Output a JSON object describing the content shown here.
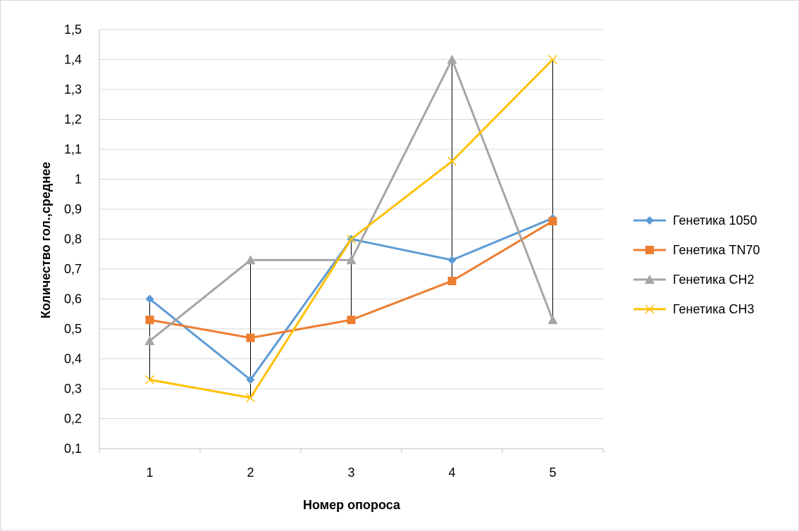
{
  "chart_data": {
    "type": "line",
    "title": "",
    "xlabel": "Номер опороса",
    "ylabel": "Количество гол.,среднее",
    "categories": [
      "1",
      "2",
      "3",
      "4",
      "5"
    ],
    "ylim": [
      0.1,
      1.5
    ],
    "yticks": [
      0.1,
      0.2,
      0.3,
      0.4,
      0.5,
      0.6,
      0.7,
      0.8,
      0.9,
      1.0,
      1.1,
      1.2,
      1.3,
      1.4,
      1.5
    ],
    "ytick_labels": [
      "0,1",
      "0,2",
      "0,3",
      "0,4",
      "0,5",
      "0,6",
      "0,7",
      "0,8",
      "0,9",
      "1",
      "1,1",
      "1,2",
      "1,3",
      "1,4",
      "1,5"
    ],
    "grid": true,
    "legend_position": "right",
    "high_low_lines": true,
    "series": [
      {
        "name": "Генетика 1050",
        "values": [
          0.6,
          0.33,
          0.8,
          0.73,
          0.87
        ],
        "color": "#5b9bd5",
        "marker": "diamond"
      },
      {
        "name": "Генетика TN70",
        "values": [
          0.53,
          0.47,
          0.53,
          0.66,
          0.86
        ],
        "color": "#ed7d31",
        "marker": "square"
      },
      {
        "name": "Генетика CH2",
        "values": [
          0.46,
          0.73,
          0.73,
          1.4,
          0.53
        ],
        "color": "#a5a5a5",
        "marker": "triangle"
      },
      {
        "name": "Генетика CH3",
        "values": [
          0.33,
          0.27,
          0.8,
          1.06,
          1.4
        ],
        "color": "#ffc000",
        "marker": "x"
      }
    ]
  }
}
